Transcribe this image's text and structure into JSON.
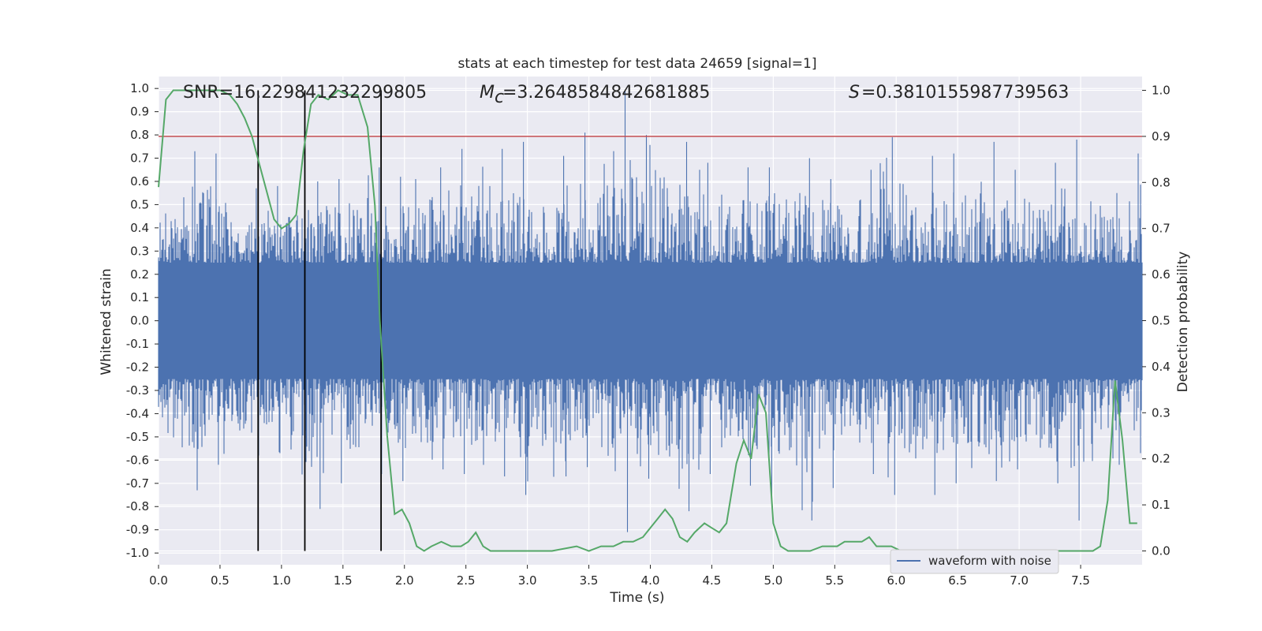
{
  "chart_data": {
    "type": "line",
    "title": "stats at each timestep for test data 24659 [signal=1]",
    "xlabel": "Time (s)",
    "ylabel": "Whitened strain",
    "ylabel_right": "Detection probability",
    "xlim": [
      0,
      8
    ],
    "ylim": [
      -1.0,
      1.0
    ],
    "ylim_right": [
      -0.03,
      1.03
    ],
    "x_ticks": [
      "0.0",
      "0.5",
      "1.0",
      "1.5",
      "2.0",
      "2.5",
      "3.0",
      "3.5",
      "4.0",
      "4.5",
      "5.0",
      "5.5",
      "6.0",
      "6.5",
      "7.0",
      "7.5"
    ],
    "y_ticks": [
      "-1.0",
      "-0.9",
      "-0.8",
      "-0.7",
      "-0.6",
      "-0.5",
      "-0.4",
      "-0.3",
      "-0.2",
      "-0.1",
      "0.0",
      "0.1",
      "0.2",
      "0.3",
      "0.4",
      "0.5",
      "0.6",
      "0.7",
      "0.8",
      "0.9",
      "1.0"
    ],
    "y_ticks_right": [
      "0.0",
      "0.1",
      "0.2",
      "0.3",
      "0.4",
      "0.5",
      "0.6",
      "0.7",
      "0.8",
      "0.9",
      "1.0"
    ],
    "annotations": {
      "snr": "SNR=16.229841232299805",
      "mc": "=3.2648584842681885",
      "s": "=0.3810155987739563"
    },
    "legend": [
      "waveform with noise"
    ],
    "threshold_right": 0.9,
    "vlines_x": [
      0.81,
      1.19,
      1.81
    ],
    "detection_probability": {
      "x": [
        0.0,
        0.06,
        0.12,
        0.2,
        0.3,
        0.4,
        0.5,
        0.58,
        0.64,
        0.7,
        0.76,
        0.82,
        0.88,
        0.94,
        1.0,
        1.06,
        1.12,
        1.18,
        1.24,
        1.3,
        1.38,
        1.46,
        1.54,
        1.62,
        1.7,
        1.76,
        1.8,
        1.86,
        1.92,
        1.98,
        2.04,
        2.1,
        2.16,
        2.22,
        2.3,
        2.38,
        2.46,
        2.52,
        2.58,
        2.64,
        2.7,
        2.76,
        2.82,
        3.0,
        3.2,
        3.4,
        3.5,
        3.6,
        3.7,
        3.78,
        3.86,
        3.94,
        4.0,
        4.06,
        4.12,
        4.18,
        4.24,
        4.3,
        4.36,
        4.44,
        4.5,
        4.56,
        4.62,
        4.7,
        4.76,
        4.82,
        4.88,
        4.94,
        5.0,
        5.06,
        5.12,
        5.2,
        5.3,
        5.4,
        5.46,
        5.52,
        5.58,
        5.66,
        5.72,
        5.78,
        5.84,
        5.9,
        5.96,
        6.04,
        6.16,
        6.3,
        6.5,
        6.7,
        6.9,
        7.1,
        7.3,
        7.5,
        7.6,
        7.66,
        7.72,
        7.78,
        7.84,
        7.9,
        7.96
      ],
      "values": [
        0.79,
        0.98,
        1.0,
        1.0,
        1.0,
        1.0,
        1.0,
        0.99,
        0.97,
        0.94,
        0.9,
        0.84,
        0.78,
        0.72,
        0.7,
        0.71,
        0.73,
        0.87,
        0.97,
        0.99,
        0.98,
        1.0,
        0.99,
        0.99,
        0.92,
        0.75,
        0.5,
        0.25,
        0.08,
        0.09,
        0.06,
        0.01,
        0.0,
        0.01,
        0.02,
        0.01,
        0.01,
        0.02,
        0.04,
        0.01,
        0.0,
        0.0,
        0.0,
        0.0,
        0.0,
        0.01,
        0.0,
        0.01,
        0.01,
        0.02,
        0.02,
        0.03,
        0.05,
        0.07,
        0.09,
        0.07,
        0.03,
        0.02,
        0.04,
        0.06,
        0.05,
        0.04,
        0.06,
        0.19,
        0.24,
        0.2,
        0.34,
        0.3,
        0.06,
        0.01,
        0.0,
        0.0,
        0.0,
        0.01,
        0.01,
        0.01,
        0.02,
        0.02,
        0.02,
        0.03,
        0.01,
        0.01,
        0.01,
        0.0,
        0.0,
        0.0,
        0.0,
        0.0,
        0.0,
        0.0,
        0.0,
        0.0,
        0.0,
        0.01,
        0.11,
        0.37,
        0.24,
        0.06,
        0.06
      ]
    },
    "waveform_envelope": {
      "x": [
        0.0,
        0.25,
        0.5,
        0.75,
        1.0,
        1.25,
        1.5,
        1.75,
        2.0,
        2.25,
        2.5,
        2.75,
        3.0,
        3.25,
        3.5,
        3.75,
        4.0,
        4.25,
        4.5,
        4.75,
        5.0,
        5.25,
        5.5,
        5.75,
        6.0,
        6.25,
        6.5,
        6.75,
        7.0,
        7.25,
        7.5,
        7.75,
        8.0
      ],
      "upper": [
        0.52,
        0.73,
        0.72,
        0.57,
        0.58,
        0.6,
        0.61,
        0.66,
        0.62,
        0.66,
        0.74,
        0.74,
        0.77,
        0.71,
        0.81,
        0.99,
        0.8,
        0.77,
        0.68,
        0.66,
        0.66,
        0.7,
        0.61,
        0.65,
        0.79,
        0.71,
        0.72,
        0.77,
        0.65,
        0.68,
        0.78,
        0.55,
        0.72
      ],
      "lower": [
        -0.52,
        -0.73,
        -0.62,
        -0.58,
        -0.57,
        -0.81,
        -0.7,
        -0.66,
        -0.69,
        -0.64,
        -0.66,
        -0.67,
        -0.75,
        -0.67,
        -0.63,
        -0.91,
        -0.68,
        -0.82,
        -0.66,
        -0.71,
        -0.76,
        -0.86,
        -0.72,
        -0.66,
        -0.75,
        -0.75,
        -0.7,
        -0.69,
        -0.64,
        -0.7,
        -0.86,
        -0.62,
        -0.57
      ]
    },
    "colors": {
      "background": "#eaeaf2",
      "grid": "#ffffff",
      "waveform": "#4c72b0",
      "probability": "#55a868",
      "threshold": "#c44e52",
      "vline": "#000000"
    }
  }
}
